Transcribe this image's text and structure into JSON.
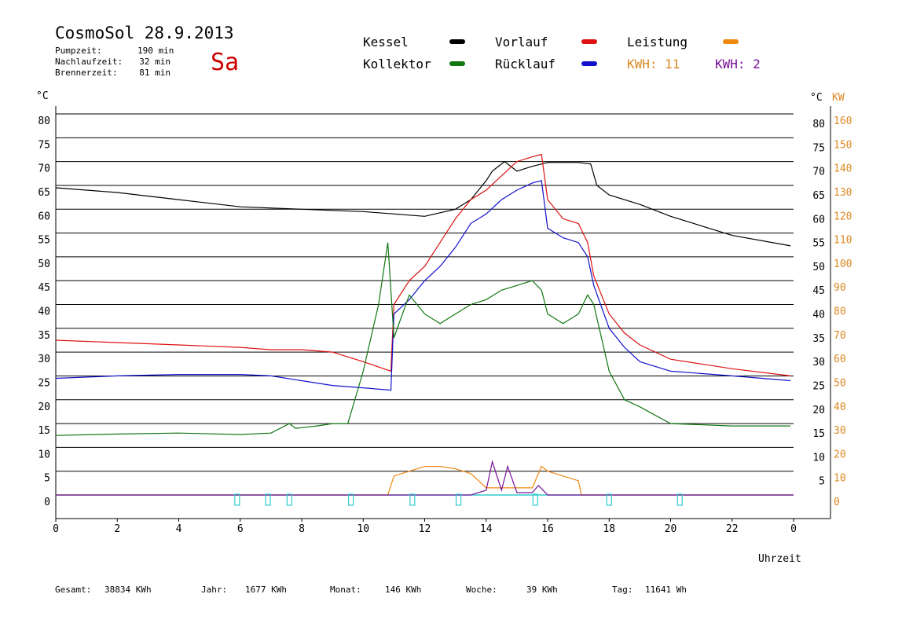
{
  "header": {
    "title": "CosmoSol 28.9.2013",
    "day": "Sa",
    "stats": [
      {
        "label": "Pumpzeit:",
        "value": "190 min"
      },
      {
        "label": "Nachlaufzeit:",
        "value": "32 min"
      },
      {
        "label": "Brennerzeit:",
        "value": "81 min"
      }
    ]
  },
  "legend": {
    "kessel": "Kessel",
    "vorlauf": "Vorlauf",
    "leistung": "Leistung",
    "kollektor": "Kollektor",
    "ruecklauf": "Rücklauf",
    "kwh1": "KWH: 11",
    "kwh2": "KWH: 2"
  },
  "colors": {
    "kessel": "#000000",
    "vorlauf": "#dd1111",
    "ruecklauf": "#1111cc",
    "kollektor": "#117711",
    "leistung": "#ee8811",
    "purple": "#771199",
    "pump": "#33cccc",
    "orange_axis": "#dd8822"
  },
  "footer": [
    {
      "label": "Gesamt:",
      "value": "38834 KWh"
    },
    {
      "label": "Jahr:",
      "value": "1677 KWh"
    },
    {
      "label": "Monat:",
      "value": "146 KWh"
    },
    {
      "label": "Woche:",
      "value": "39 KWh"
    },
    {
      "label": "Tag:",
      "value": "11641 Wh"
    }
  ],
  "chart_data": {
    "type": "line",
    "xlabel": "Uhrzeit",
    "ylabel_left": "°C",
    "ylabel_right": "°C",
    "ylabel_right2": "KW",
    "xlim": [
      0,
      24
    ],
    "ylim": [
      0,
      80
    ],
    "y2lim": [
      0,
      160
    ],
    "x_ticks": [
      "0",
      "2",
      "4",
      "6",
      "8",
      "10",
      "12",
      "14",
      "16",
      "18",
      "20",
      "22",
      "0"
    ],
    "y_ticks": [
      0,
      5,
      10,
      15,
      20,
      25,
      30,
      35,
      40,
      45,
      50,
      55,
      60,
      65,
      70,
      75,
      80
    ],
    "y2_ticks": [
      0,
      10,
      20,
      30,
      40,
      50,
      60,
      70,
      80,
      90,
      100,
      110,
      120,
      130,
      140,
      150,
      160
    ],
    "series": [
      {
        "name": "Kessel",
        "x": [
          0,
          2,
          4,
          6,
          8,
          10,
          11,
          12,
          13,
          13.5,
          14,
          14.2,
          14.6,
          15,
          15.5,
          16,
          17,
          17.4,
          17.6,
          18,
          19,
          20,
          22,
          23.9
        ],
        "y": [
          64.5,
          63.5,
          62,
          60.5,
          60,
          59.5,
          59,
          58.5,
          60,
          62,
          66,
          68,
          70,
          68,
          69,
          69.8,
          69.8,
          69.5,
          65,
          63,
          61,
          58.5,
          54.5,
          52.3
        ]
      },
      {
        "name": "Vorlauf",
        "x": [
          0,
          2,
          4,
          6,
          7,
          8,
          9,
          10,
          10.9,
          11,
          11.5,
          12,
          12.5,
          13,
          13.5,
          14,
          14.5,
          15,
          15.5,
          15.8,
          16,
          16.5,
          17,
          17.3,
          17.5,
          18,
          18.5,
          19,
          20,
          22,
          23.9
        ],
        "y": [
          32.5,
          32,
          31.5,
          31,
          30.5,
          30.5,
          30,
          28,
          26,
          40,
          45,
          48,
          53,
          58,
          62,
          64,
          67,
          70,
          71,
          71.5,
          62,
          58,
          57,
          53,
          46,
          38,
          34,
          31.5,
          28.5,
          26.5,
          25
        ]
      },
      {
        "name": "Rücklauf",
        "x": [
          0,
          2,
          4,
          6,
          7,
          8,
          9,
          10,
          10.9,
          11,
          11.5,
          12,
          12.5,
          13,
          13.5,
          14,
          14.5,
          15,
          15.5,
          15.8,
          16,
          16.5,
          17,
          17.3,
          17.5,
          18,
          18.5,
          19,
          20,
          22,
          23.9
        ],
        "y": [
          24.5,
          25,
          25.3,
          25.3,
          25,
          24,
          23,
          22.5,
          22,
          38,
          41,
          45,
          48,
          52,
          57,
          59,
          62,
          64,
          65.5,
          66,
          56,
          54,
          53,
          50,
          44,
          35,
          31,
          28,
          26,
          25,
          24
        ]
      },
      {
        "name": "Kollektor",
        "x": [
          0,
          2,
          4,
          6,
          7,
          7.6,
          7.8,
          8.5,
          9,
          9.5,
          10,
          10.5,
          10.8,
          11,
          11.5,
          12,
          12.5,
          13,
          13.5,
          14,
          14.5,
          15,
          15.5,
          15.8,
          16,
          16.5,
          17,
          17.3,
          17.5,
          18,
          18.5,
          19,
          20,
          22,
          23.9
        ],
        "y": [
          12.5,
          12.8,
          13,
          12.7,
          13,
          15,
          14,
          14.5,
          15,
          15,
          26,
          40,
          53,
          33,
          42,
          38,
          36,
          38,
          40,
          41,
          43,
          44,
          45,
          43,
          38,
          36,
          38,
          42,
          40,
          26,
          20,
          18.5,
          15,
          14.5,
          14.5
        ]
      },
      {
        "name": "Leistung",
        "x": [
          0,
          10.8,
          11,
          11.5,
          12,
          12.5,
          13,
          13.5,
          14,
          14.5,
          15,
          15.5,
          15.8,
          16,
          16.5,
          17,
          17.1,
          24
        ],
        "y": [
          0,
          0,
          4,
          5,
          6,
          6,
          5.5,
          4.5,
          1.5,
          1.5,
          1.5,
          1.5,
          6,
          5,
          4,
          3,
          0,
          0
        ]
      },
      {
        "name": "KWH: 2",
        "x": [
          0,
          13.5,
          14,
          14.2,
          14.5,
          14.7,
          15,
          15.5,
          15.7,
          16,
          24
        ],
        "y": [
          0,
          0,
          1,
          7,
          1,
          6,
          0.5,
          0.5,
          2,
          0,
          0
        ]
      }
    ],
    "pump_markers": [
      5.9,
      6.9,
      7.6,
      9.6,
      11.6,
      13.1,
      15.6,
      18,
      20.3
    ]
  }
}
